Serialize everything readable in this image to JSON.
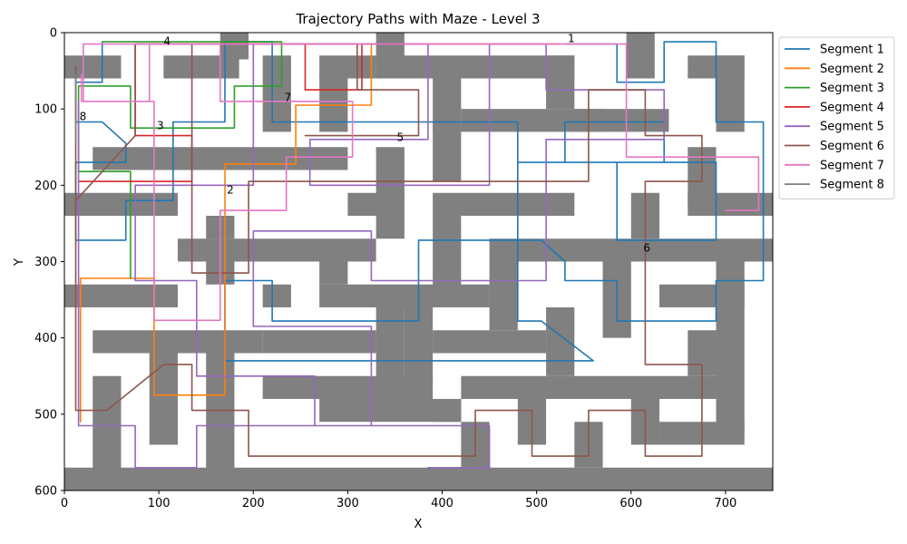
{
  "chart_data": {
    "type": "line",
    "title": "Trajectory Paths with Maze - Level 3",
    "xlabel": "X",
    "ylabel": "Y",
    "xlim": [
      0,
      750
    ],
    "ylim": [
      600,
      0
    ],
    "y_inverted": true,
    "grid": false,
    "legend_position": "upper-right-outside",
    "xticks": [
      0,
      100,
      200,
      300,
      400,
      500,
      600,
      700
    ],
    "yticks": [
      0,
      100,
      200,
      300,
      400,
      500,
      600
    ],
    "maze_color": "#808080",
    "maze_walls": [
      [
        165,
        0,
        30,
        35
      ],
      [
        330,
        0,
        30,
        35
      ],
      [
        595,
        0,
        30,
        60
      ],
      [
        0,
        30,
        60,
        30
      ],
      [
        105,
        30,
        80,
        30
      ],
      [
        210,
        30,
        30,
        100
      ],
      [
        270,
        30,
        60,
        30
      ],
      [
        330,
        30,
        210,
        30
      ],
      [
        510,
        30,
        30,
        70
      ],
      [
        660,
        30,
        60,
        30
      ],
      [
        690,
        30,
        30,
        100
      ],
      [
        270,
        55,
        30,
        75
      ],
      [
        390,
        55,
        30,
        75
      ],
      [
        420,
        100,
        150,
        30
      ],
      [
        540,
        100,
        100,
        30
      ],
      [
        30,
        150,
        270,
        30
      ],
      [
        330,
        150,
        30,
        75
      ],
      [
        390,
        120,
        30,
        75
      ],
      [
        660,
        150,
        30,
        75
      ],
      [
        0,
        210,
        120,
        30
      ],
      [
        300,
        210,
        60,
        30
      ],
      [
        390,
        210,
        150,
        30
      ],
      [
        600,
        210,
        30,
        60
      ],
      [
        660,
        210,
        90,
        30
      ],
      [
        150,
        240,
        30,
        30
      ],
      [
        330,
        240,
        30,
        30
      ],
      [
        390,
        240,
        30,
        100
      ],
      [
        450,
        270,
        300,
        30
      ],
      [
        120,
        270,
        210,
        30
      ],
      [
        150,
        270,
        30,
        60
      ],
      [
        270,
        300,
        30,
        30
      ],
      [
        450,
        300,
        30,
        90
      ],
      [
        570,
        300,
        30,
        100
      ],
      [
        690,
        300,
        30,
        225
      ],
      [
        0,
        330,
        120,
        30
      ],
      [
        270,
        330,
        180,
        30
      ],
      [
        630,
        330,
        90,
        30
      ],
      [
        210,
        330,
        30,
        30
      ],
      [
        30,
        390,
        180,
        30
      ],
      [
        210,
        390,
        120,
        30
      ],
      [
        390,
        390,
        120,
        30
      ],
      [
        660,
        390,
        30,
        60
      ],
      [
        330,
        360,
        30,
        120
      ],
      [
        360,
        360,
        30,
        100
      ],
      [
        510,
        360,
        30,
        90
      ],
      [
        420,
        450,
        270,
        30
      ],
      [
        210,
        450,
        180,
        30
      ],
      [
        90,
        420,
        30,
        120
      ],
      [
        30,
        450,
        30,
        150
      ],
      [
        150,
        420,
        30,
        180
      ],
      [
        270,
        480,
        150,
        30
      ],
      [
        390,
        480,
        30,
        30
      ],
      [
        420,
        510,
        30,
        60
      ],
      [
        480,
        480,
        30,
        60
      ],
      [
        540,
        510,
        30,
        60
      ],
      [
        600,
        480,
        30,
        60
      ],
      [
        630,
        510,
        90,
        30
      ],
      [
        0,
        570,
        750,
        30
      ]
    ],
    "series": [
      {
        "name": "Segment 1",
        "color": "#1f77b4",
        "points": [
          [
            530,
            15
          ],
          [
            585,
            15
          ],
          [
            585,
            65
          ],
          [
            635,
            65
          ],
          [
            635,
            12
          ],
          [
            690,
            12
          ],
          [
            690,
            117
          ],
          [
            740,
            117
          ],
          [
            740,
            325
          ],
          [
            690,
            325
          ],
          [
            690,
            378
          ],
          [
            585,
            378
          ],
          [
            585,
            325
          ],
          [
            530,
            325
          ],
          [
            530,
            300
          ],
          [
            505,
            272
          ],
          [
            375,
            272
          ],
          [
            375,
            378
          ],
          [
            220,
            378
          ],
          [
            220,
            325
          ],
          [
            170,
            325
          ],
          [
            170,
            430
          ],
          [
            560,
            430
          ],
          [
            505,
            378
          ],
          [
            480,
            378
          ],
          [
            480,
            170
          ],
          [
            690,
            170
          ],
          [
            690,
            272
          ],
          [
            585,
            272
          ],
          [
            585,
            170
          ],
          [
            530,
            170
          ],
          [
            530,
            117
          ],
          [
            635,
            117
          ],
          [
            635,
            170
          ],
          [
            480,
            170
          ],
          [
            480,
            117
          ],
          [
            220,
            117
          ],
          [
            220,
            12
          ],
          [
            170,
            12
          ],
          [
            170,
            117
          ],
          [
            115,
            117
          ],
          [
            115,
            220
          ],
          [
            65,
            220
          ],
          [
            65,
            272
          ],
          [
            12,
            272
          ],
          [
            12,
            170
          ],
          [
            65,
            170
          ],
          [
            65,
            145
          ],
          [
            40,
            117
          ],
          [
            12,
            117
          ],
          [
            12,
            65
          ],
          [
            40,
            65
          ],
          [
            40,
            12
          ]
        ]
      },
      {
        "name": "Segment 2",
        "color": "#ff7f0e",
        "points": [
          [
            90,
            15
          ],
          [
            325,
            15
          ],
          [
            325,
            95
          ],
          [
            245,
            95
          ],
          [
            245,
            172
          ],
          [
            170,
            172
          ],
          [
            170,
            475
          ],
          [
            95,
            475
          ],
          [
            95,
            322
          ],
          [
            17,
            322
          ],
          [
            17,
            510
          ]
        ]
      },
      {
        "name": "Segment 3",
        "color": "#2ca02c",
        "points": [
          [
            40,
            12
          ],
          [
            230,
            12
          ],
          [
            230,
            70
          ],
          [
            180,
            70
          ],
          [
            180,
            125
          ],
          [
            70,
            125
          ],
          [
            70,
            70
          ],
          [
            15,
            70
          ],
          [
            15,
            182
          ],
          [
            70,
            182
          ],
          [
            70,
            322
          ]
        ]
      },
      {
        "name": "Segment 4",
        "color": "#d62728",
        "points": [
          [
            15,
            195
          ],
          [
            135,
            195
          ],
          [
            135,
            135
          ],
          [
            75,
            135
          ],
          [
            75,
            15
          ],
          [
            255,
            15
          ],
          [
            255,
            75
          ],
          [
            315,
            75
          ],
          [
            315,
            15
          ],
          [
            525,
            15
          ]
        ]
      },
      {
        "name": "Segment 5",
        "color": "#9467bd",
        "points": [
          [
            15,
            90
          ],
          [
            15,
            515
          ],
          [
            75,
            515
          ],
          [
            75,
            570
          ],
          [
            140,
            570
          ],
          [
            140,
            515
          ],
          [
            325,
            515
          ],
          [
            325,
            385
          ],
          [
            200,
            385
          ],
          [
            200,
            260
          ],
          [
            325,
            260
          ],
          [
            325,
            325
          ],
          [
            510,
            325
          ],
          [
            510,
            140
          ],
          [
            635,
            140
          ],
          [
            635,
            75
          ],
          [
            510,
            75
          ],
          [
            510,
            15
          ],
          [
            450,
            15
          ],
          [
            450,
            200
          ],
          [
            260,
            200
          ],
          [
            260,
            140
          ],
          [
            385,
            140
          ],
          [
            385,
            15
          ],
          [
            200,
            15
          ],
          [
            200,
            200
          ],
          [
            75,
            200
          ],
          [
            75,
            325
          ],
          [
            140,
            325
          ],
          [
            140,
            450
          ],
          [
            265,
            450
          ],
          [
            265,
            515
          ],
          [
            450,
            515
          ],
          [
            450,
            570
          ],
          [
            385,
            570
          ]
        ]
      },
      {
        "name": "Segment 6",
        "color": "#8c564b",
        "points": [
          [
            12,
            45
          ],
          [
            12,
            495
          ],
          [
            45,
            495
          ],
          [
            105,
            435
          ],
          [
            135,
            435
          ],
          [
            135,
            495
          ],
          [
            195,
            495
          ],
          [
            195,
            555
          ],
          [
            435,
            555
          ],
          [
            435,
            495
          ],
          [
            495,
            495
          ],
          [
            495,
            555
          ],
          [
            555,
            555
          ],
          [
            555,
            495
          ],
          [
            615,
            495
          ],
          [
            615,
            555
          ],
          [
            675,
            555
          ],
          [
            675,
            435
          ],
          [
            615,
            435
          ],
          [
            615,
            195
          ],
          [
            675,
            195
          ],
          [
            675,
            135
          ],
          [
            615,
            135
          ],
          [
            615,
            75
          ],
          [
            555,
            75
          ],
          [
            555,
            195
          ],
          [
            195,
            195
          ],
          [
            195,
            315
          ],
          [
            135,
            315
          ],
          [
            135,
            15
          ],
          [
            75,
            15
          ],
          [
            75,
            135
          ],
          [
            12,
            220
          ],
          [
            75,
            135
          ],
          [
            75,
            15
          ],
          [
            310,
            15
          ],
          [
            310,
            75
          ],
          [
            375,
            75
          ],
          [
            375,
            135
          ],
          [
            255,
            135
          ]
        ]
      },
      {
        "name": "Segment 7",
        "color": "#e377c2",
        "points": [
          [
            18,
            55
          ],
          [
            18,
            90
          ],
          [
            90,
            90
          ],
          [
            90,
            15
          ],
          [
            165,
            15
          ],
          [
            165,
            90
          ],
          [
            305,
            90
          ],
          [
            305,
            163
          ],
          [
            235,
            163
          ],
          [
            235,
            233
          ],
          [
            165,
            233
          ],
          [
            165,
            377
          ],
          [
            95,
            377
          ],
          [
            95,
            90
          ],
          [
            20,
            90
          ],
          [
            20,
            15
          ],
          [
            595,
            15
          ],
          [
            595,
            163
          ],
          [
            735,
            163
          ],
          [
            735,
            233
          ],
          [
            700,
            233
          ]
        ]
      },
      {
        "name": "Segment 8",
        "color": "#7f7f7f",
        "points": [
          [
            12,
            55
          ],
          [
            12,
            145
          ]
        ]
      }
    ],
    "annotations": [
      {
        "text": "1",
        "x": 533,
        "y": 8
      },
      {
        "text": "2",
        "x": 172,
        "y": 206
      },
      {
        "text": "3",
        "x": 98,
        "y": 122
      },
      {
        "text": "4",
        "x": 105,
        "y": 11
      },
      {
        "text": "5",
        "x": 352,
        "y": 137
      },
      {
        "text": "6",
        "x": 613,
        "y": 282
      },
      {
        "text": "7",
        "x": 233,
        "y": 85
      },
      {
        "text": "8",
        "x": 16,
        "y": 110
      }
    ]
  }
}
